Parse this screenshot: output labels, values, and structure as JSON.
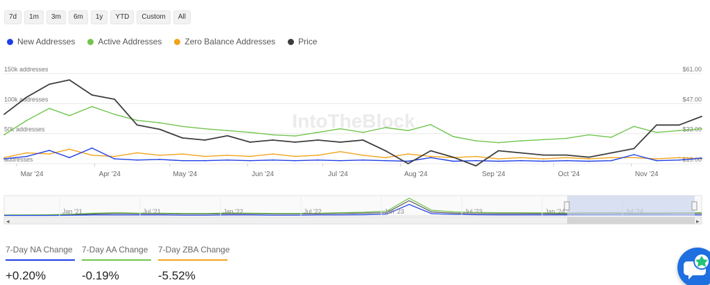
{
  "toolbar": {
    "ranges": [
      "7d",
      "1m",
      "3m",
      "6m",
      "1y",
      "YTD",
      "Custom",
      "All"
    ]
  },
  "colors": {
    "new_addresses": "#1f3fe6",
    "active_addresses": "#72c44c",
    "zero_balance": "#f2a31b",
    "price": "#3d3d3d",
    "grid": "#e8e8e8",
    "navigator_mask": "#c9d4ec",
    "chat_button": "#1f6fe0"
  },
  "watermark": "IntoTheBlock",
  "chart_data": {
    "type": "line",
    "x": [
      "2024-02-25",
      "2024-03-05",
      "2024-03-14",
      "2024-03-22",
      "2024-03-31",
      "2024-04-09",
      "2024-04-18",
      "2024-04-27",
      "2024-05-06",
      "2024-05-15",
      "2024-05-24",
      "2024-06-02",
      "2024-06-11",
      "2024-06-20",
      "2024-06-29",
      "2024-07-08",
      "2024-07-17",
      "2024-07-26",
      "2024-08-04",
      "2024-08-13",
      "2024-08-22",
      "2024-08-31",
      "2024-09-09",
      "2024-09-18",
      "2024-09-27",
      "2024-10-06",
      "2024-10-15",
      "2024-10-24",
      "2024-11-02",
      "2024-11-11",
      "2024-11-20",
      "2024-11-29"
    ],
    "x_tick_labels": [
      "Mar '24",
      "Apr '24",
      "May '24",
      "Jun '24",
      "Jul '24",
      "Aug '24",
      "Sep '24",
      "Oct '24",
      "Nov '24"
    ],
    "x_tick_dates": [
      "2024-03-01",
      "2024-04-01",
      "2024-05-01",
      "2024-06-01",
      "2024-07-01",
      "2024-08-01",
      "2024-09-01",
      "2024-10-01",
      "2024-11-01"
    ],
    "y_left": {
      "ticks": [
        0,
        50000,
        100000,
        150000
      ],
      "labels": [
        "addresses",
        "50k addresses",
        "100k addresses",
        "150k addresses"
      ],
      "range": [
        0,
        150000
      ]
    },
    "y_right": {
      "ticks": [
        19,
        33,
        47,
        61
      ],
      "labels": [
        "$19.00",
        "$33.00",
        "$47.00",
        "$61.00"
      ],
      "range": [
        19,
        61
      ]
    },
    "series": [
      {
        "name": "New Addresses",
        "color": "#1f3fe6",
        "axis": "left",
        "values": [
          8000,
          12000,
          22000,
          10000,
          26000,
          8000,
          6000,
          7000,
          5000,
          5000,
          6000,
          5000,
          6000,
          5000,
          6000,
          5000,
          6000,
          5000,
          4000,
          10000,
          4000,
          5000,
          4000,
          5000,
          4000,
          5000,
          4000,
          5000,
          15000,
          5000,
          6000,
          9000
        ]
      },
      {
        "name": "Active Addresses",
        "color": "#72c44c",
        "axis": "left",
        "values": [
          48000,
          72000,
          92000,
          80000,
          95000,
          82000,
          72000,
          68000,
          62000,
          58000,
          55000,
          52000,
          48000,
          46000,
          52000,
          58000,
          52000,
          60000,
          55000,
          65000,
          45000,
          38000,
          35000,
          38000,
          40000,
          42000,
          48000,
          44000,
          62000,
          52000,
          55000,
          58000
        ]
      },
      {
        "name": "Zero Balance Addresses",
        "color": "#f2a31b",
        "axis": "left",
        "values": [
          10000,
          18000,
          16000,
          24000,
          14000,
          12000,
          18000,
          14000,
          16000,
          12000,
          14000,
          12000,
          16000,
          12000,
          14000,
          20000,
          14000,
          10000,
          16000,
          12000,
          10000,
          12000,
          8000,
          10000,
          8000,
          10000,
          8000,
          10000,
          10000,
          8000,
          10000,
          8000
        ]
      },
      {
        "name": "Price",
        "color": "#3d3d3d",
        "axis": "right",
        "values": [
          42,
          50,
          56,
          58,
          51,
          49,
          37,
          35,
          31,
          30,
          32,
          29,
          30,
          29,
          30,
          29,
          30,
          25,
          19,
          25,
          22,
          18,
          25,
          24,
          23,
          23,
          22,
          24,
          26,
          37,
          37,
          41
        ]
      }
    ],
    "navigator": {
      "x_tick_labels": [
        "Jan '21",
        "Jul '21",
        "Jan '22",
        "Jul '22",
        "Jan '23",
        "Jul '23",
        "Jan '24",
        "Jul '24"
      ],
      "green": [
        3,
        3,
        4,
        6,
        10,
        12,
        10,
        10,
        9,
        9,
        11,
        10,
        9,
        9,
        10,
        12,
        14,
        18,
        70,
        22,
        15,
        13,
        12,
        12,
        11,
        11,
        12,
        12,
        11,
        11,
        12,
        12
      ],
      "blue": [
        1,
        1,
        1,
        2,
        3,
        3,
        3,
        3,
        2,
        2,
        3,
        3,
        2,
        2,
        3,
        3,
        4,
        6,
        45,
        8,
        5,
        4,
        3,
        3,
        3,
        3,
        3,
        3,
        3,
        3,
        3,
        3
      ],
      "dark": [
        2,
        2,
        3,
        4,
        7,
        9,
        8,
        8,
        7,
        7,
        8,
        8,
        7,
        7,
        8,
        9,
        10,
        12,
        60,
        15,
        10,
        9,
        8,
        8,
        8,
        7,
        8,
        8,
        8,
        8,
        9,
        9
      ]
    }
  },
  "stats": [
    {
      "label": "7-Day NA Change",
      "value": "+0.20%",
      "color": "#1f3fe6"
    },
    {
      "label": "7-Day AA Change",
      "value": "-0.19%",
      "color": "#72c44c"
    },
    {
      "label": "7-Day ZBA Change",
      "value": "-5.52%",
      "color": "#f2a31b"
    }
  ],
  "chat_icon": "chat-bubble-icon"
}
